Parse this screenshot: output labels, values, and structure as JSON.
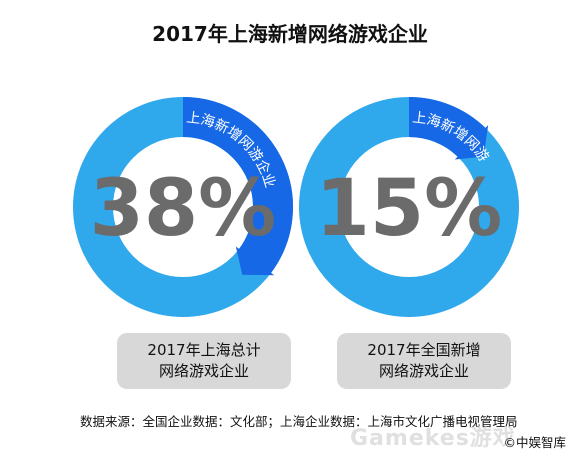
{
  "chart_data": {
    "type": "pie",
    "title": "2017年上海新增网络游戏企业",
    "charts": [
      {
        "value_pct": 38,
        "value_label": "38%",
        "slice_label": "上海新增网游企业",
        "caption_lines": [
          "2017年上海总计",
          "网络游戏企业"
        ]
      },
      {
        "value_pct": 15,
        "value_label": "15%",
        "slice_label": "上海新增网游企业",
        "caption_lines": [
          "2017年全国新增",
          "网络游戏企业"
        ]
      }
    ],
    "colors": {
      "ring": "#2fa8ec",
      "slice": "#1668e6",
      "slice_text": "#ffffff",
      "value_text": "#6b6b6b"
    }
  },
  "footer": {
    "source": "数据来源：全国企业数据：文化部；上海企业数据：上海市文化广播电视管理局",
    "copyright": "©中娱智库",
    "watermark": "Gamekes游戏"
  }
}
